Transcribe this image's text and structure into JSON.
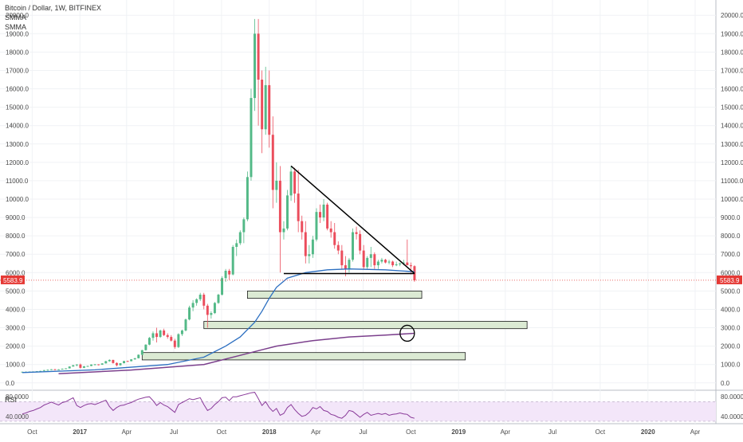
{
  "chart_data": {
    "type": "candlestick",
    "title": "Bitcoin / Dollar, 1W, BITFINEX",
    "legend": [
      "SMMA",
      "SMMA"
    ],
    "price_axis": {
      "ylim": [
        -400,
        20400
      ],
      "ticks": [
        "0.0",
        "1000.0",
        "2000.0",
        "3000.0",
        "4000.0",
        "5000.0",
        "6000.0",
        "7000.0",
        "8000.0",
        "9000.0",
        "10000.0",
        "11000.0",
        "12000.0",
        "13000.0",
        "14000.0",
        "15000.0",
        "16000.0",
        "17000.0",
        "18000.0",
        "19000.0",
        "20000.0"
      ],
      "last_price": "5583.9",
      "last_price_color": "#e53935"
    },
    "time_axis": {
      "labels": [
        {
          "label": "Oct",
          "date": "2016-10-01"
        },
        {
          "label": "2017",
          "date": "2017-01-01"
        },
        {
          "label": "Apr",
          "date": "2017-04-01"
        },
        {
          "label": "Jul",
          "date": "2017-07-01"
        },
        {
          "label": "Oct",
          "date": "2017-10-01"
        },
        {
          "label": "2018",
          "date": "2018-01-01"
        },
        {
          "label": "Apr",
          "date": "2018-04-01"
        },
        {
          "label": "Jul",
          "date": "2018-07-01"
        },
        {
          "label": "Oct",
          "date": "2018-10-01"
        },
        {
          "label": "2019",
          "date": "2019-01-01"
        },
        {
          "label": "Apr",
          "date": "2019-04-01"
        },
        {
          "label": "Jul",
          "date": "2019-07-01"
        },
        {
          "label": "Oct",
          "date": "2019-10-01"
        },
        {
          "label": "2020",
          "date": "2020-01-01"
        },
        {
          "label": "Apr",
          "date": "2020-04-01"
        }
      ],
      "range": [
        "2016-09-12",
        "2020-05-11"
      ]
    },
    "candles_start_date": "2016-09-12",
    "candles_interval": "1W",
    "candles": [
      [
        600,
        610,
        595,
        605
      ],
      [
        605,
        612,
        598,
        608
      ],
      [
        608,
        620,
        604,
        615
      ],
      [
        615,
        625,
        610,
        620
      ],
      [
        620,
        640,
        615,
        635
      ],
      [
        635,
        660,
        630,
        650
      ],
      [
        650,
        700,
        645,
        695
      ],
      [
        695,
        730,
        690,
        710
      ],
      [
        710,
        750,
        700,
        740
      ],
      [
        740,
        760,
        720,
        730
      ],
      [
        730,
        745,
        710,
        735
      ],
      [
        735,
        780,
        730,
        770
      ],
      [
        770,
        800,
        760,
        790
      ],
      [
        790,
        900,
        785,
        890
      ],
      [
        890,
        980,
        880,
        960
      ],
      [
        960,
        1020,
        900,
        1000
      ],
      [
        1000,
        1050,
        780,
        820
      ],
      [
        820,
        920,
        800,
        900
      ],
      [
        900,
        930,
        880,
        920
      ],
      [
        920,
        1010,
        910,
        1000
      ],
      [
        1000,
        1030,
        960,
        1010
      ],
      [
        1010,
        1010,
        950,
        990
      ],
      [
        990,
        1070,
        980,
        1060
      ],
      [
        1060,
        1200,
        1050,
        1180
      ],
      [
        1180,
        1280,
        1150,
        1250
      ],
      [
        1250,
        1260,
        1050,
        1080
      ],
      [
        1080,
        1120,
        900,
        960
      ],
      [
        960,
        1080,
        940,
        1070
      ],
      [
        1070,
        1200,
        1060,
        1190
      ],
      [
        1190,
        1210,
        1150,
        1180
      ],
      [
        1180,
        1290,
        1170,
        1280
      ],
      [
        1280,
        1360,
        1260,
        1340
      ],
      [
        1340,
        1550,
        1330,
        1530
      ],
      [
        1530,
        1800,
        1510,
        1780
      ],
      [
        1780,
        2100,
        1760,
        2080
      ],
      [
        2080,
        2500,
        2050,
        2450
      ],
      [
        2450,
        2800,
        2300,
        2700
      ],
      [
        2700,
        3000,
        2200,
        2500
      ],
      [
        2500,
        2900,
        2450,
        2850
      ],
      [
        2850,
        2950,
        2550,
        2600
      ],
      [
        2600,
        2700,
        2400,
        2500
      ],
      [
        2500,
        2600,
        2250,
        2300
      ],
      [
        2300,
        2400,
        1850,
        1950
      ],
      [
        1950,
        2700,
        1900,
        2650
      ],
      [
        2650,
        2900,
        2550,
        2850
      ],
      [
        2850,
        3500,
        2800,
        3450
      ],
      [
        3450,
        4200,
        3400,
        4100
      ],
      [
        4100,
        4500,
        3900,
        4350
      ],
      [
        4350,
        4600,
        4200,
        4550
      ],
      [
        4550,
        4900,
        4450,
        4800
      ],
      [
        4800,
        4900,
        4000,
        4200
      ],
      [
        4200,
        4300,
        3000,
        3700
      ],
      [
        3700,
        3900,
        3500,
        3800
      ],
      [
        3800,
        4400,
        3750,
        4350
      ],
      [
        4350,
        4850,
        4300,
        4800
      ],
      [
        4800,
        5800,
        4750,
        5700
      ],
      [
        5700,
        6200,
        5500,
        6100
      ],
      [
        6100,
        6200,
        5600,
        5900
      ],
      [
        5900,
        7500,
        5850,
        7400
      ],
      [
        7400,
        7800,
        6900,
        7600
      ],
      [
        7600,
        8300,
        7500,
        8200
      ],
      [
        8200,
        9000,
        7600,
        8900
      ],
      [
        8900,
        11500,
        8800,
        11200
      ],
      [
        11200,
        16000,
        11000,
        15500
      ],
      [
        15500,
        19800,
        14800,
        19000
      ],
      [
        19000,
        19800,
        14000,
        16500
      ],
      [
        16500,
        17000,
        12500,
        13800
      ],
      [
        13800,
        17200,
        13500,
        16200
      ],
      [
        16200,
        17000,
        12800,
        13500
      ],
      [
        13500,
        14500,
        9500,
        10500
      ],
      [
        10500,
        12000,
        9800,
        11000
      ],
      [
        11000,
        11800,
        6000,
        8200
      ],
      [
        8200,
        8800,
        7800,
        8400
      ],
      [
        8400,
        10500,
        8300,
        10200
      ],
      [
        10200,
        11800,
        9900,
        11500
      ],
      [
        11500,
        11700,
        9800,
        10300
      ],
      [
        10300,
        11600,
        8200,
        8800
      ],
      [
        8800,
        9100,
        7800,
        8200
      ],
      [
        8200,
        8800,
        6500,
        6900
      ],
      [
        6900,
        7500,
        6500,
        7000
      ],
      [
        7000,
        8000,
        6800,
        7800
      ],
      [
        7800,
        9500,
        7700,
        9300
      ],
      [
        9300,
        9700,
        8700,
        9000
      ],
      [
        9000,
        10000,
        8800,
        9700
      ],
      [
        9700,
        9800,
        8300,
        8400
      ],
      [
        8400,
        8800,
        7900,
        8200
      ],
      [
        8200,
        8700,
        7300,
        7500
      ],
      [
        7500,
        7700,
        7000,
        7200
      ],
      [
        7200,
        7500,
        6200,
        6400
      ],
      [
        6400,
        6900,
        5800,
        6200
      ],
      [
        6200,
        6800,
        6000,
        6700
      ],
      [
        6700,
        8400,
        6600,
        8200
      ],
      [
        8200,
        8500,
        7800,
        8100
      ],
      [
        8100,
        8300,
        7000,
        7200
      ],
      [
        7200,
        7500,
        6200,
        6300
      ],
      [
        6300,
        6900,
        6200,
        6800
      ],
      [
        6800,
        7400,
        6300,
        7000
      ],
      [
        7000,
        7100,
        6200,
        6400
      ],
      [
        6400,
        6700,
        6200,
        6600
      ],
      [
        6600,
        6800,
        6500,
        6700
      ],
      [
        6700,
        6750,
        6500,
        6550
      ],
      [
        6550,
        6700,
        6450,
        6600
      ],
      [
        6600,
        6650,
        6300,
        6400
      ],
      [
        6400,
        6600,
        6350,
        6450
      ],
      [
        6450,
        6550,
        6350,
        6500
      ],
      [
        6500,
        6700,
        6400,
        6550
      ],
      [
        6550,
        7800,
        6400,
        6400
      ],
      [
        6400,
        6550,
        5900,
        6350
      ],
      [
        6350,
        6400,
        5500,
        5580
      ]
    ],
    "smma_fast": [
      [
        0,
        560
      ],
      [
        20,
        710
      ],
      [
        40,
        1000
      ],
      [
        50,
        1400
      ],
      [
        56,
        2000
      ],
      [
        60,
        2500
      ],
      [
        64,
        3300
      ],
      [
        66,
        3900
      ],
      [
        68,
        4600
      ],
      [
        70,
        5200
      ],
      [
        73,
        5700
      ],
      [
        78,
        6000
      ],
      [
        84,
        6150
      ],
      [
        90,
        6200
      ],
      [
        100,
        6150
      ],
      [
        108,
        6050
      ]
    ],
    "smma_slow": [
      [
        10,
        500
      ],
      [
        30,
        700
      ],
      [
        50,
        1000
      ],
      [
        60,
        1500
      ],
      [
        66,
        1800
      ],
      [
        70,
        2000
      ],
      [
        80,
        2300
      ],
      [
        90,
        2500
      ],
      [
        100,
        2600
      ],
      [
        108,
        2700
      ]
    ],
    "zones": [
      {
        "from_week": 33,
        "to_week": 122,
        "low": 1250,
        "high": 1650
      },
      {
        "from_week": 50,
        "to_week": 139,
        "low": 2950,
        "high": 3350
      },
      {
        "from_week": 62,
        "to_week": 110,
        "low": 4600,
        "high": 5000
      }
    ],
    "triangle": {
      "upper": [
        [
          74,
          11800
        ],
        [
          108,
          5950
        ]
      ],
      "lower": [
        [
          72,
          5950
        ],
        [
          108,
          5950
        ]
      ]
    },
    "circle_marker": {
      "week": 106,
      "value": 2700
    },
    "rsi": {
      "label": "RSI",
      "ticks": [
        "80.0000",
        "40.0000"
      ],
      "band": [
        30,
        70
      ],
      "ylim": [
        25,
        90
      ],
      "start_week": 0,
      "values": [
        45,
        47,
        50,
        52,
        55,
        58,
        63,
        66,
        69,
        66,
        63,
        68,
        70,
        74,
        78,
        62,
        58,
        62,
        65,
        66,
        64,
        67,
        70,
        73,
        60,
        52,
        58,
        62,
        63,
        66,
        68,
        72,
        75,
        77,
        79,
        80,
        72,
        62,
        68,
        63,
        60,
        54,
        48,
        64,
        68,
        72,
        76,
        74,
        76,
        78,
        64,
        52,
        56,
        64,
        70,
        78,
        79,
        72,
        80,
        80,
        82,
        84,
        86,
        88,
        89,
        76,
        62,
        70,
        58,
        50,
        56,
        42,
        46,
        58,
        64,
        54,
        46,
        40,
        42,
        48,
        58,
        55,
        60,
        52,
        50,
        44,
        42,
        38,
        36,
        42,
        52,
        50,
        44,
        38,
        44,
        48,
        42,
        44,
        46,
        44,
        46,
        42,
        44,
        45,
        47,
        45,
        44,
        38,
        36
      ]
    }
  }
}
